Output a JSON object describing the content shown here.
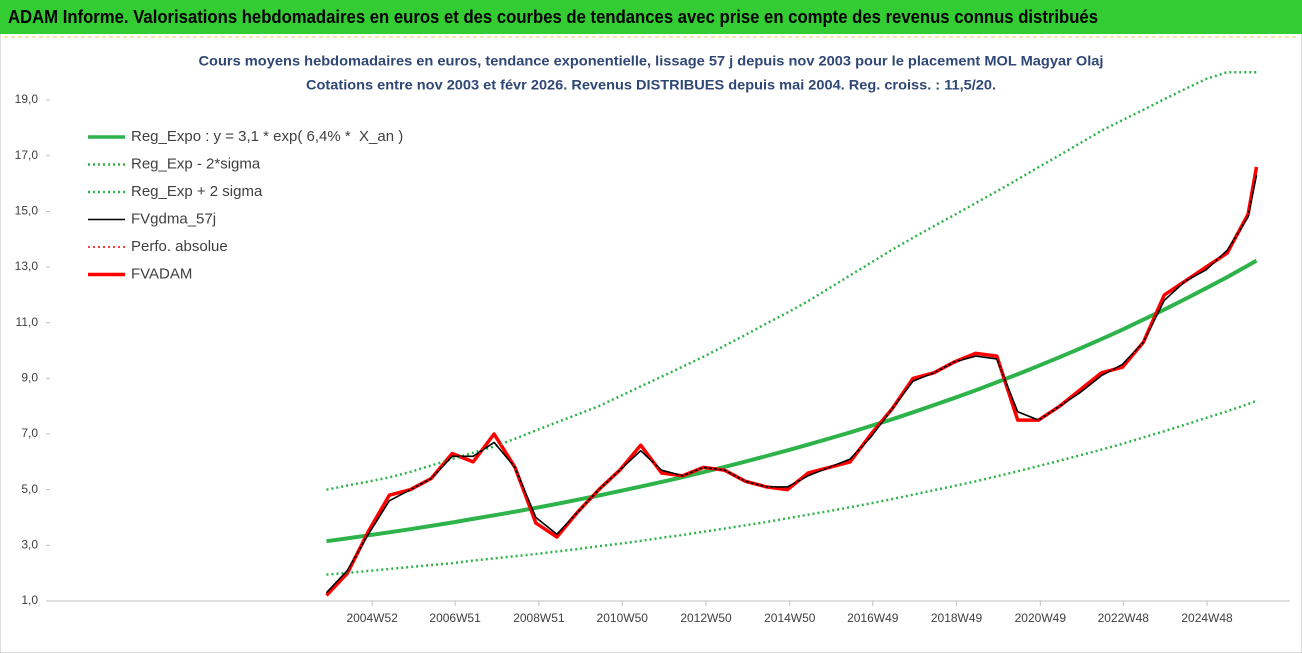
{
  "banner": "ADAM Informe. Valorisations hebdomadaires en euros et des courbes de tendances avec prise en compte des revenus connus distribués",
  "chart_data": {
    "type": "line",
    "title": "Cours moyens hebdomadaires en euros, tendance exponentielle, lissage 57 j depuis nov 2003 pour le placement MOL Magyar Olaj",
    "subtitle": "Cotations entre nov 2003 et févr 2026. Revenus DISTRIBUES depuis mai 2004. Reg. croiss. : 11,5/20.",
    "x": [
      2003.9,
      2004.4,
      2004.9,
      2005.4,
      2005.9,
      2006.4,
      2006.9,
      2007.4,
      2007.9,
      2008.4,
      2008.9,
      2009.4,
      2009.9,
      2010.4,
      2010.9,
      2011.4,
      2011.9,
      2012.4,
      2012.9,
      2013.4,
      2013.9,
      2014.4,
      2014.9,
      2015.4,
      2015.9,
      2016.4,
      2016.9,
      2017.4,
      2017.9,
      2018.4,
      2018.9,
      2019.4,
      2019.9,
      2020.4,
      2020.9,
      2021.4,
      2021.9,
      2022.4,
      2022.9,
      2023.4,
      2023.9,
      2024.4,
      2024.9,
      2025.4,
      2025.9,
      2026.1
    ],
    "series": [
      {
        "name": "Reg_Expo : y = 3,1 * exp( 6,4% *  X_an )",
        "color": "#2db34a",
        "line_style": "solid",
        "line_width": 4,
        "values": [
          3.15,
          3.25,
          3.36,
          3.47,
          3.58,
          3.7,
          3.82,
          3.95,
          4.08,
          4.21,
          4.35,
          4.49,
          4.64,
          4.79,
          4.95,
          5.11,
          5.28,
          5.45,
          5.63,
          5.82,
          6.01,
          6.21,
          6.41,
          6.62,
          6.84,
          7.06,
          7.29,
          7.53,
          7.78,
          8.04,
          8.3,
          8.57,
          8.86,
          9.15,
          9.45,
          9.76,
          10.08,
          10.41,
          10.75,
          11.11,
          11.47,
          11.85,
          12.24,
          12.64,
          13.06,
          13.23
        ]
      },
      {
        "name": "Reg_Exp - 2*sigma",
        "color": "#2db34a",
        "line_style": "dotted",
        "line_width": 2.5,
        "values": [
          1.95,
          2.01,
          2.08,
          2.15,
          2.22,
          2.29,
          2.36,
          2.45,
          2.53,
          2.61,
          2.69,
          2.78,
          2.87,
          2.97,
          3.06,
          3.16,
          3.27,
          3.37,
          3.49,
          3.6,
          3.72,
          3.84,
          3.97,
          4.1,
          4.23,
          4.37,
          4.51,
          4.66,
          4.82,
          4.98,
          5.14,
          5.3,
          5.48,
          5.66,
          5.85,
          6.04,
          6.24,
          6.44,
          6.65,
          6.88,
          7.1,
          7.34,
          7.58,
          7.82,
          8.08,
          8.19
        ]
      },
      {
        "name": "Reg_Exp + 2 sigma",
        "color": "#2db34a",
        "line_style": "dotted",
        "line_width": 2.5,
        "values": [
          5.0,
          5.15,
          5.29,
          5.44,
          5.64,
          5.87,
          6.1,
          6.33,
          6.55,
          6.83,
          7.13,
          7.42,
          7.71,
          8.0,
          8.35,
          8.71,
          9.06,
          9.42,
          9.78,
          10.17,
          10.56,
          10.97,
          11.36,
          11.78,
          12.24,
          12.7,
          13.16,
          13.62,
          14.05,
          14.47,
          14.88,
          15.3,
          15.72,
          16.15,
          16.59,
          17.02,
          17.46,
          17.9,
          18.28,
          18.65,
          19.03,
          19.4,
          19.76,
          20.0,
          20.0,
          20.0
        ]
      },
      {
        "name": "FVgdma_57j",
        "color": "#000000",
        "line_style": "solid",
        "line_width": 1.6,
        "values": [
          1.3,
          2.1,
          3.4,
          4.6,
          5.0,
          5.4,
          6.2,
          6.2,
          6.7,
          5.8,
          4.0,
          3.4,
          4.2,
          5.0,
          5.7,
          6.4,
          5.7,
          5.5,
          5.8,
          5.7,
          5.3,
          5.1,
          5.1,
          5.5,
          5.8,
          6.1,
          6.9,
          7.9,
          8.9,
          9.2,
          9.6,
          9.8,
          9.7,
          7.8,
          7.5,
          8.0,
          8.5,
          9.1,
          9.5,
          10.3,
          11.8,
          12.5,
          12.9,
          13.6,
          14.8,
          16.3
        ]
      },
      {
        "name": "Perfo. absolue",
        "color": "#ff0000",
        "line_style": "dotted",
        "line_width": 1.5,
        "values": [
          1.2,
          2.0,
          3.5,
          4.8,
          5.0,
          5.4,
          6.3,
          6.0,
          7.0,
          5.8,
          3.8,
          3.3,
          4.2,
          5.0,
          5.7,
          6.6,
          5.6,
          5.5,
          5.8,
          5.7,
          5.3,
          5.1,
          5.0,
          5.6,
          5.8,
          6.0,
          7.0,
          7.9,
          9.0,
          9.2,
          9.6,
          9.9,
          9.8,
          7.5,
          7.5,
          8.0,
          8.6,
          9.2,
          9.4,
          10.3,
          12.0,
          12.5,
          13.0,
          13.5,
          14.9,
          16.6
        ]
      },
      {
        "name": "FVADAM",
        "color": "#ff0000",
        "line_style": "solid",
        "line_width": 3.5,
        "values": [
          1.2,
          2.0,
          3.5,
          4.8,
          5.0,
          5.4,
          6.3,
          6.0,
          7.0,
          5.8,
          3.8,
          3.3,
          4.2,
          5.0,
          5.7,
          6.6,
          5.6,
          5.5,
          5.8,
          5.7,
          5.3,
          5.1,
          5.0,
          5.6,
          5.8,
          6.0,
          7.0,
          7.9,
          9.0,
          9.2,
          9.6,
          9.9,
          9.8,
          7.5,
          7.5,
          8.0,
          8.6,
          9.2,
          9.4,
          10.3,
          12.0,
          12.5,
          13.0,
          13.5,
          14.9,
          16.6
        ]
      }
    ],
    "xlim": [
      1997.3,
      2026.9
    ],
    "xticks": [
      {
        "value": 2004.99,
        "label": "2004W52"
      },
      {
        "value": 2006.97,
        "label": "2006W51"
      },
      {
        "value": 2008.97,
        "label": "2008W51"
      },
      {
        "value": 2010.96,
        "label": "2010W50"
      },
      {
        "value": 2012.96,
        "label": "2012W50"
      },
      {
        "value": 2014.96,
        "label": "2014W50"
      },
      {
        "value": 2016.94,
        "label": "2016W49"
      },
      {
        "value": 2018.94,
        "label": "2018W49"
      },
      {
        "value": 2020.94,
        "label": "2020W49"
      },
      {
        "value": 2022.92,
        "label": "2022W48"
      },
      {
        "value": 2024.92,
        "label": "2024W48"
      }
    ],
    "ylim": [
      1,
      21
    ],
    "yticks": [
      {
        "value": 1,
        "label": "1,0"
      },
      {
        "value": 3,
        "label": "3,0"
      },
      {
        "value": 5,
        "label": "5,0"
      },
      {
        "value": 7,
        "label": "7,0"
      },
      {
        "value": 9,
        "label": "9,0"
      },
      {
        "value": 11,
        "label": "11,0"
      },
      {
        "value": 13,
        "label": "13,0"
      },
      {
        "value": 15,
        "label": "15,0"
      },
      {
        "value": 17,
        "label": "17,0"
      },
      {
        "value": 19,
        "label": "19,0"
      }
    ],
    "grid": false,
    "legend": "upper left"
  }
}
